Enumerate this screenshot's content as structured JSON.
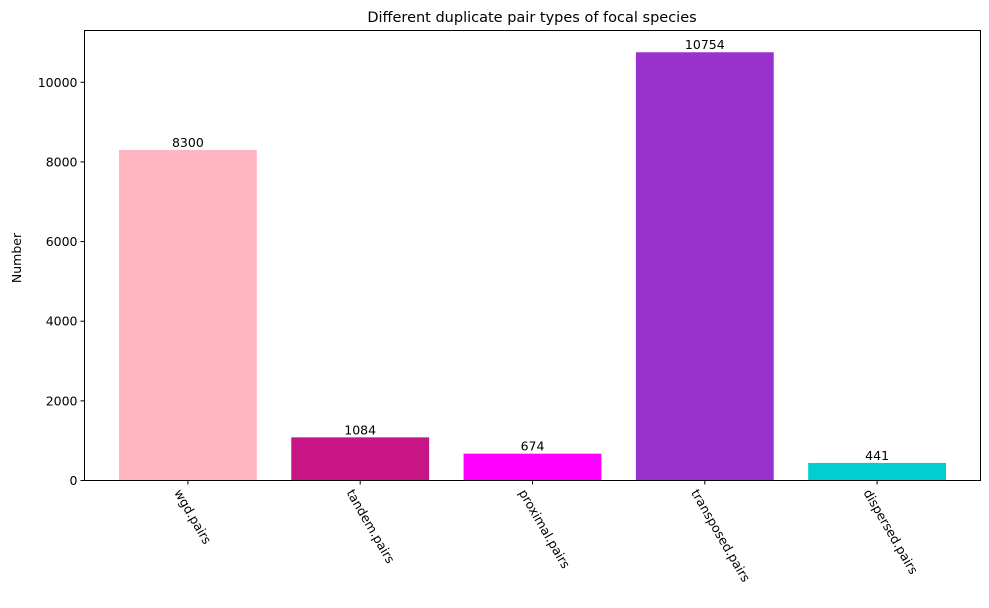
{
  "chart_data": {
    "type": "bar",
    "title": "Different duplicate pair types of focal species",
    "xlabel": "",
    "ylabel": "Number",
    "categories": [
      "wgd.pairs",
      "tandem.pairs",
      "proximal.pairs",
      "transposed.pairs",
      "dispersed.pairs"
    ],
    "values": [
      8300,
      1084,
      674,
      10754,
      441
    ],
    "data_labels": [
      "8300",
      "1084",
      "674",
      "10754",
      "441"
    ],
    "colors": [
      "#ffb6c1",
      "#c71585",
      "#ff00ff",
      "#9932cc",
      "#00ced1"
    ],
    "ylim": [
      0,
      11300
    ],
    "yticks": [
      0,
      2000,
      4000,
      6000,
      8000,
      10000
    ],
    "ytick_labels": [
      "0",
      "2000",
      "4000",
      "6000",
      "8000",
      "10000"
    ],
    "grid": false,
    "legend": "none"
  }
}
